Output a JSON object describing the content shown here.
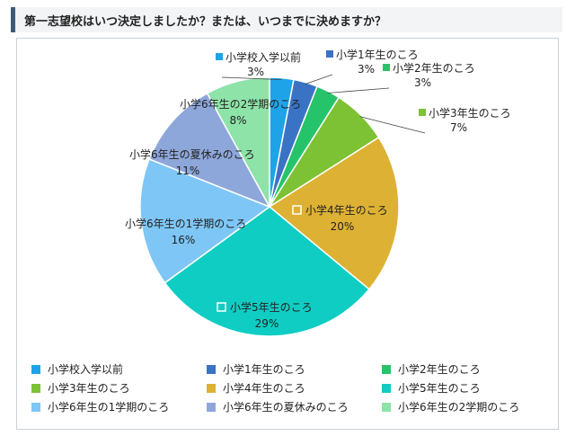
{
  "header": {
    "title": "第一志望校はいつ決定しましたか？または、いつまでに決めますか？"
  },
  "chart_data": {
    "type": "pie",
    "slices": [
      {
        "label": "小学校入学以前",
        "value": 3,
        "value_label": "3%",
        "color": "#1fa3e8"
      },
      {
        "label": "小学1年生のころ",
        "value": 3,
        "value_label": "3%",
        "color": "#3b73c4"
      },
      {
        "label": "小学2年生のころ",
        "value": 3,
        "value_label": "3%",
        "color": "#26c46a"
      },
      {
        "label": "小学3年生のころ",
        "value": 7,
        "value_label": "7%",
        "color": "#7dc234"
      },
      {
        "label": "小学4年生のころ",
        "value": 20,
        "value_label": "20%",
        "color": "#ddb133"
      },
      {
        "label": "小学5年生のころ",
        "value": 29,
        "value_label": "29%",
        "color": "#10cdc4"
      },
      {
        "label": "小学6年生の1学期のころ",
        "value": 16,
        "value_label": "16%",
        "color": "#7ec6f5"
      },
      {
        "label": "小学6年生の夏休みのころ",
        "value": 11,
        "value_label": "11%",
        "color": "#8ea7da"
      },
      {
        "label": "小学6年生の2学期のころ",
        "value": 8,
        "value_label": "8%",
        "color": "#8ee3a8"
      }
    ],
    "legend_position": "bottom"
  }
}
